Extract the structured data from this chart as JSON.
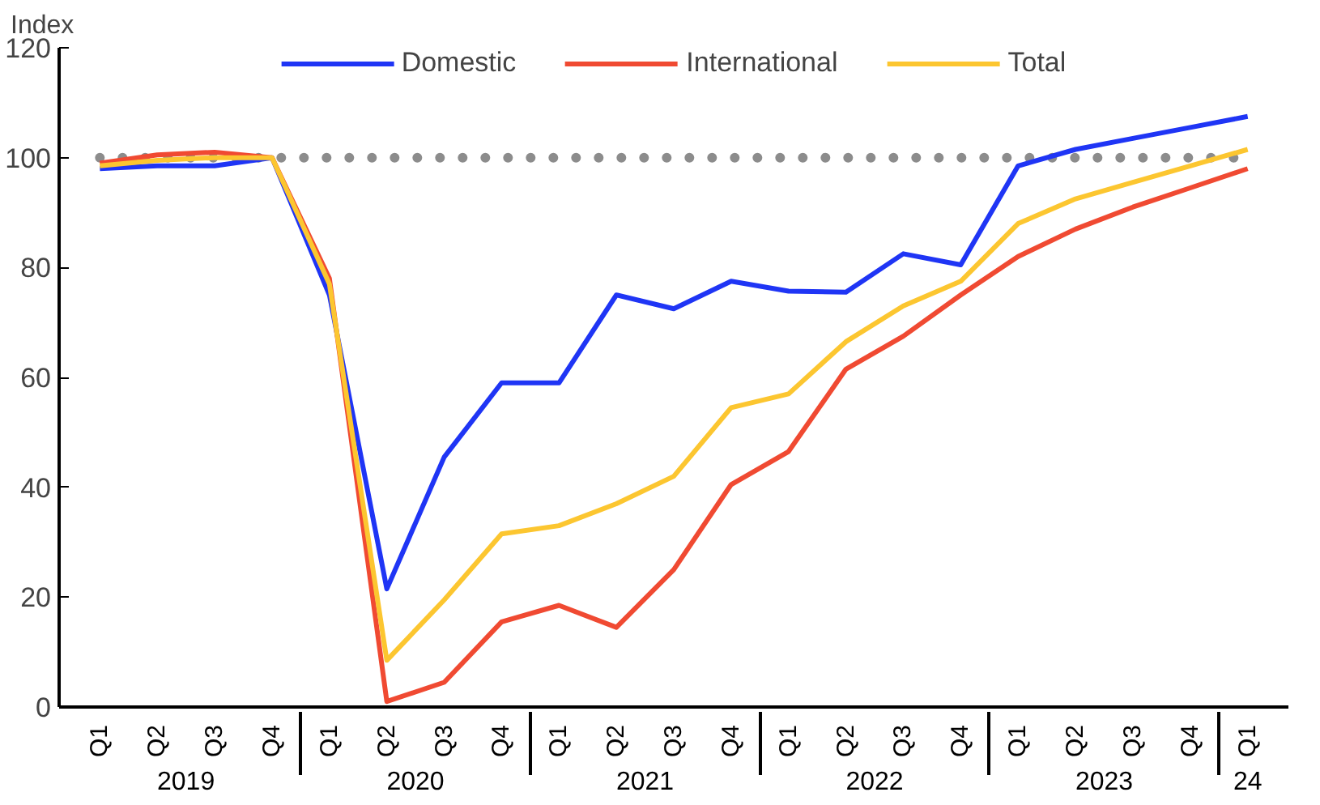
{
  "chart_data": {
    "type": "line",
    "ylabel": "Index",
    "categories": [
      "Q1",
      "Q2",
      "Q3",
      "Q4",
      "Q1",
      "Q2",
      "Q3",
      "Q4",
      "Q1",
      "Q2",
      "Q3",
      "Q4",
      "Q1",
      "Q2",
      "Q3",
      "Q4",
      "Q1",
      "Q2",
      "Q3",
      "Q4",
      "Q1"
    ],
    "annotations": [
      "2019",
      "2020",
      "2021",
      "2022",
      "2023",
      "24"
    ],
    "series": [
      {
        "name": "Domestic",
        "color": "#1f35f5",
        "values": [
          98,
          98.5,
          98.5,
          100,
          75,
          21.5,
          45.5,
          59,
          59,
          75,
          72.5,
          77.5,
          75.7,
          75.5,
          82.5,
          80.5,
          98.5,
          101.5,
          103.5,
          105.5,
          107.5
        ]
      },
      {
        "name": "International",
        "color": "#f04a32",
        "values": [
          99,
          100.5,
          101,
          100,
          78,
          1,
          4.5,
          15.5,
          18.5,
          14.5,
          25,
          40.5,
          46.5,
          61.5,
          67.5,
          75,
          82,
          87,
          91,
          94.5,
          98
        ]
      },
      {
        "name": "Total",
        "color": "#fcc630",
        "values": [
          98.5,
          99.5,
          100,
          100,
          77,
          8.5,
          19.5,
          31.5,
          33,
          37,
          42,
          54.5,
          57,
          66.5,
          73,
          77.5,
          88,
          92.5,
          95.5,
          98.5,
          101.5
        ]
      }
    ],
    "ylim": [
      0,
      120
    ],
    "yticks": [
      0,
      20,
      40,
      60,
      80,
      100,
      120
    ],
    "ref_lines": [
      {
        "axis": "y",
        "value": 100,
        "color": "#8c8c8c",
        "line_style": "dotted"
      }
    ],
    "grid": false,
    "legend": "top",
    "marker": "none",
    "line_style": "solid"
  }
}
